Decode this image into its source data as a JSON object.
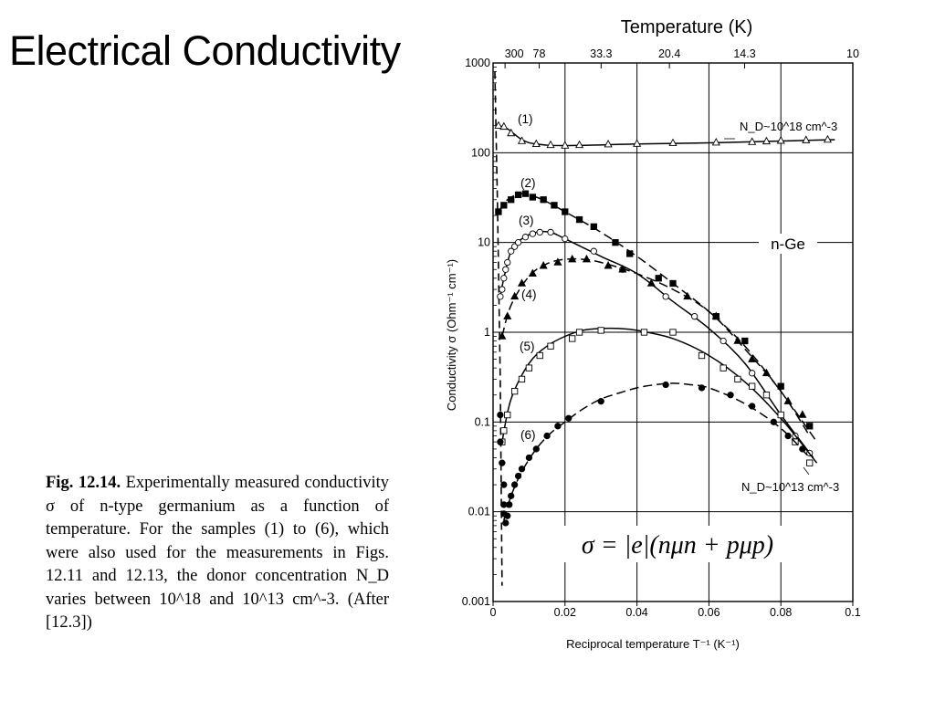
{
  "slide": {
    "title": "Electrical Conductivity"
  },
  "caption": {
    "label": "Fig. 12.14.",
    "text": "Experimentally measured conductivity σ of n-type germanium as a function of temperature. For the samples (1) to (6), which were also used for the measurements in Figs. 12.11 and 12.13, the donor concentration N_D varies between 10^18 and 10^13 cm^-3. (After [12.3])"
  },
  "chart_data": {
    "type": "scatter",
    "title": "",
    "xlabel": "Reciprocal temperature T⁻¹ (K⁻¹)",
    "ylabel": "Conductivity σ (Ohm⁻¹ cm⁻¹)",
    "top_axis_label": "Temperature (K)",
    "xlim": [
      0,
      0.1
    ],
    "ylim": [
      0.001,
      1000
    ],
    "yscale": "log",
    "grid": true,
    "x_ticks": [
      "0",
      "0.02",
      "0.04",
      "0.06",
      "0.08",
      "0.1"
    ],
    "y_ticks": [
      "0.001",
      "0.01",
      "0.1",
      "1",
      "10",
      "100",
      "1000"
    ],
    "top_ticks": [
      "300",
      "78",
      "33.3",
      "20.4",
      "14.3",
      "10"
    ],
    "annotations": {
      "nd_high": "N_D~10^18 cm^-3",
      "nd_low": "N_D~10^13 cm^-3",
      "material": "n-Ge",
      "formula": "σ = |e|(nμn + pμp)"
    },
    "series": [
      {
        "name": "(1)",
        "marker": "triangle-open",
        "x": [
          0.0015,
          0.003,
          0.005,
          0.008,
          0.012,
          0.016,
          0.02,
          0.024,
          0.032,
          0.04,
          0.05,
          0.062,
          0.072,
          0.076,
          0.08,
          0.087,
          0.093
        ],
        "y": [
          200,
          195,
          165,
          135,
          125,
          122,
          120,
          122,
          124,
          126,
          128,
          130,
          132,
          134,
          136,
          138,
          140
        ],
        "curve_x": [
          0.0015,
          0.004,
          0.008,
          0.012,
          0.02,
          0.04,
          0.06,
          0.08,
          0.095
        ],
        "curve_y": [
          200,
          185,
          140,
          125,
          120,
          125,
          129,
          135,
          140
        ]
      },
      {
        "name": "(2)",
        "marker": "square-filled",
        "x": [
          0.0015,
          0.003,
          0.005,
          0.007,
          0.009,
          0.011,
          0.014,
          0.017,
          0.02,
          0.024,
          0.028,
          0.034,
          0.038,
          0.046,
          0.05,
          0.062,
          0.07,
          0.08,
          0.088
        ],
        "y": [
          22,
          26,
          30,
          34,
          35,
          32,
          30,
          26,
          22,
          18,
          15,
          10,
          7.5,
          4,
          3.5,
          1.5,
          0.8,
          0.25,
          0.09
        ],
        "curve_x": [
          0.0015,
          0.004,
          0.008,
          0.012,
          0.016,
          0.02,
          0.03,
          0.04,
          0.05,
          0.06,
          0.07,
          0.08,
          0.09
        ],
        "curve_y": [
          22,
          30,
          35,
          32,
          27,
          22,
          13,
          7,
          3.5,
          1.7,
          0.7,
          0.22,
          0.06
        ]
      },
      {
        "name": "(3)",
        "marker": "circle-open",
        "x": [
          0.002,
          0.0025,
          0.003,
          0.0035,
          0.004,
          0.005,
          0.006,
          0.007,
          0.009,
          0.011,
          0.013,
          0.016,
          0.02,
          0.028,
          0.036,
          0.048,
          0.056,
          0.064,
          0.072,
          0.08,
          0.084,
          0.088
        ],
        "y": [
          2.5,
          3,
          4,
          5,
          6,
          8,
          9,
          10,
          11.5,
          12.5,
          13,
          13,
          11,
          8,
          5,
          2.5,
          1.5,
          0.8,
          0.35,
          0.12,
          0.07,
          0.045
        ],
        "curve_x": [
          0.002,
          0.003,
          0.005,
          0.008,
          0.012,
          0.016,
          0.02,
          0.03,
          0.04,
          0.05,
          0.06,
          0.07,
          0.08,
          0.089
        ],
        "curve_y": [
          2.5,
          4,
          8,
          11,
          13,
          13,
          11,
          7,
          4.5,
          2.2,
          1.1,
          0.45,
          0.12,
          0.04
        ]
      },
      {
        "name": "(4)",
        "marker": "triangle-filled",
        "x": [
          0.0025,
          0.004,
          0.006,
          0.008,
          0.011,
          0.014,
          0.018,
          0.022,
          0.026,
          0.032,
          0.036,
          0.044,
          0.054,
          0.062,
          0.068,
          0.072,
          0.076,
          0.082,
          0.086
        ],
        "y": [
          0.9,
          1.5,
          2.5,
          3.5,
          4.5,
          5.5,
          6,
          6.5,
          6.5,
          5.5,
          5,
          3.5,
          2.5,
          1.5,
          0.8,
          0.5,
          0.35,
          0.17,
          0.12
        ],
        "curve_x": [
          0.0025,
          0.005,
          0.01,
          0.015,
          0.02,
          0.025,
          0.03,
          0.04,
          0.05,
          0.06,
          0.07,
          0.08,
          0.088
        ],
        "curve_y": [
          0.9,
          2,
          4.2,
          5.8,
          6.5,
          6.5,
          6,
          4.5,
          3,
          1.7,
          0.65,
          0.22,
          0.07
        ]
      },
      {
        "name": "(5)",
        "marker": "square-open",
        "x": [
          0.0025,
          0.003,
          0.004,
          0.006,
          0.008,
          0.01,
          0.013,
          0.016,
          0.022,
          0.024,
          0.03,
          0.042,
          0.05,
          0.058,
          0.064,
          0.068,
          0.072,
          0.076,
          0.08,
          0.084,
          0.088
        ],
        "y": [
          0.06,
          0.08,
          0.12,
          0.22,
          0.3,
          0.4,
          0.55,
          0.7,
          0.85,
          1.0,
          1.05,
          1.0,
          1.0,
          0.55,
          0.4,
          0.3,
          0.25,
          0.2,
          0.12,
          0.06,
          0.035
        ],
        "curve_x": [
          0.0025,
          0.005,
          0.01,
          0.015,
          0.02,
          0.025,
          0.03,
          0.035,
          0.04,
          0.05,
          0.06,
          0.07,
          0.08,
          0.09
        ],
        "curve_y": [
          0.06,
          0.18,
          0.45,
          0.7,
          0.9,
          1.05,
          1.1,
          1.1,
          1.05,
          0.85,
          0.55,
          0.28,
          0.11,
          0.035
        ]
      },
      {
        "name": "(6)",
        "marker": "circle-filled",
        "x": [
          0.002,
          0.002,
          0.0025,
          0.003,
          0.003,
          0.003,
          0.0035,
          0.004,
          0.0045,
          0.005,
          0.006,
          0.007,
          0.008,
          0.01,
          0.012,
          0.015,
          0.018,
          0.021,
          0.03,
          0.048,
          0.058,
          0.066,
          0.072,
          0.078,
          0.082,
          0.086
        ],
        "y": [
          0.12,
          0.06,
          0.035,
          0.02,
          0.012,
          0.0095,
          0.0075,
          0.009,
          0.012,
          0.015,
          0.02,
          0.025,
          0.03,
          0.04,
          0.05,
          0.07,
          0.09,
          0.11,
          0.17,
          0.26,
          0.24,
          0.2,
          0.15,
          0.1,
          0.07,
          0.05
        ],
        "curve_x": [
          0.003,
          0.005,
          0.008,
          0.012,
          0.016,
          0.02,
          0.025,
          0.03,
          0.035,
          0.04,
          0.045,
          0.05,
          0.055,
          0.06,
          0.07,
          0.08,
          0.088
        ],
        "curve_y": [
          0.008,
          0.015,
          0.028,
          0.05,
          0.075,
          0.1,
          0.14,
          0.18,
          0.21,
          0.24,
          0.26,
          0.27,
          0.26,
          0.24,
          0.16,
          0.085,
          0.04
        ]
      }
    ]
  }
}
